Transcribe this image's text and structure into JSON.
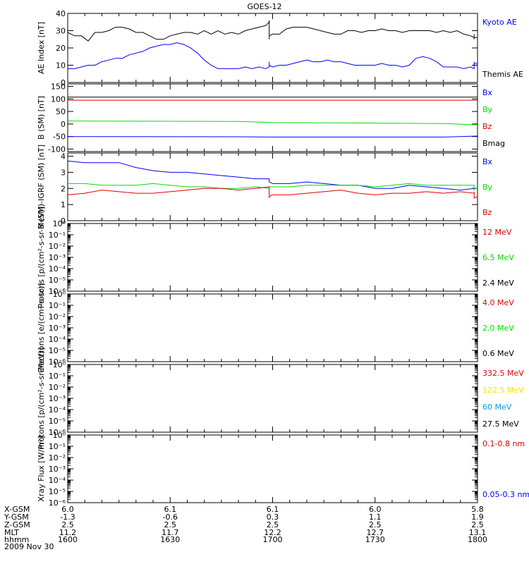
{
  "title": "GOES-12",
  "colors": {
    "black": "#000000",
    "blue": "#0000ff",
    "red": "#e00000",
    "green": "#00e000",
    "yellow": "#ffe000",
    "cyan": "#00a0e0",
    "orbit_blue": "#0000c8"
  },
  "chart_data": [
    {
      "type": "line",
      "id": "ae",
      "ylabel": "AE Index [nT]",
      "ylim": [
        0,
        40
      ],
      "yticks": [
        "0",
        "10",
        "20",
        "30",
        "40"
      ],
      "ytick_values": [
        0,
        10,
        20,
        30,
        40
      ],
      "series": [
        {
          "name": "Kyoto AE",
          "color": "blue",
          "x": [
            1600,
            1602,
            1604,
            1606,
            1608,
            1610,
            1612,
            1614,
            1616,
            1618,
            1620,
            1622,
            1624,
            1626,
            1628,
            1630,
            1632,
            1634,
            1636,
            1638,
            1640,
            1642,
            1644,
            1646,
            1648,
            1650,
            1652,
            1654,
            1656,
            1658,
            1660,
            1662,
            1664,
            1666,
            1668,
            1670,
            1672,
            1674,
            1676,
            1678,
            1680,
            1682,
            1684,
            1686,
            1688,
            1690,
            1692,
            1694,
            1696,
            1698,
            1700,
            1702,
            1704,
            1706,
            1708,
            1710,
            1712,
            1714,
            1716,
            1718,
            1720,
            1722,
            1724,
            1726,
            1728,
            1730,
            1732,
            1734,
            1736,
            1738,
            1740,
            1742,
            1744,
            1746,
            1748,
            1750,
            1752,
            1754,
            1756,
            1758,
            1760,
            1762,
            1764,
            1766,
            1768,
            1770,
            1772,
            1774,
            1776,
            1778,
            1780,
            1782,
            1784,
            1786,
            1788,
            1790,
            1792,
            1794,
            1796,
            1798,
            1800
          ],
          "values": [
            8,
            8,
            9,
            10,
            10,
            12,
            13,
            14,
            14,
            16,
            17,
            18,
            20,
            21,
            22,
            22,
            23,
            22,
            20,
            17,
            13,
            10,
            8,
            8,
            8,
            8,
            9,
            8,
            9,
            8,
            9,
            10,
            11,
            10,
            10,
            11,
            12,
            11,
            11,
            10,
            10,
            10,
            9,
            10,
            9,
            10,
            10,
            10,
            9,
            10,
            9,
            10,
            10,
            11,
            12,
            13,
            12,
            12,
            13,
            12,
            12,
            11,
            10,
            10,
            10,
            10,
            11,
            10,
            10,
            9,
            10,
            14,
            15,
            14,
            12,
            9,
            9,
            9,
            8,
            9,
            8,
            10,
            9,
            9,
            9,
            9,
            9,
            9,
            9,
            8,
            9,
            9,
            10,
            11,
            12,
            11,
            11,
            11,
            11,
            11,
            11
          ]
        },
        {
          "name": "Themis AE",
          "color": "black",
          "x": [
            1600,
            1602,
            1604,
            1606,
            1608,
            1610,
            1612,
            1614,
            1616,
            1618,
            1620,
            1622,
            1624,
            1626,
            1628,
            1630,
            1632,
            1634,
            1636,
            1638,
            1640,
            1642,
            1644,
            1646,
            1648,
            1650,
            1652,
            1654,
            1656,
            1658,
            1660,
            1662,
            1664,
            1666,
            1668,
            1670,
            1672,
            1674,
            1676,
            1678,
            1680,
            1682,
            1684,
            1686,
            1688,
            1690,
            1692,
            1694,
            1696,
            1698,
            1700,
            1702,
            1704,
            1706,
            1708,
            1710,
            1712,
            1714,
            1716,
            1718,
            1720,
            1722,
            1724,
            1726,
            1728,
            1730,
            1732,
            1734,
            1736,
            1738,
            1740,
            1742,
            1744,
            1746,
            1748,
            1750,
            1752,
            1754,
            1756,
            1758,
            1760,
            1762,
            1764,
            1766,
            1768,
            1770,
            1772,
            1774,
            1776,
            1778,
            1780,
            1782,
            1784,
            1786,
            1788,
            1790,
            1792,
            1794,
            1796,
            1798,
            1800
          ],
          "values": [
            29,
            27,
            27,
            24,
            29,
            29,
            30,
            32,
            32,
            31,
            29,
            29,
            27,
            25,
            25,
            27,
            28,
            29,
            29,
            28,
            30,
            28,
            30,
            28,
            29,
            28,
            30,
            31,
            32,
            33,
            35,
            36,
            35,
            35,
            35,
            32,
            30,
            27,
            26,
            26,
            25,
            25,
            26,
            25,
            25,
            26,
            26,
            26,
            27,
            27,
            28,
            28,
            31,
            32,
            32,
            32,
            31,
            30,
            29,
            28,
            28,
            30,
            30,
            29,
            30,
            30,
            31,
            30,
            30,
            29,
            30,
            30,
            30,
            30,
            29,
            30,
            29,
            30,
            28,
            27,
            26,
            26,
            25,
            26,
            26,
            26,
            26,
            26,
            27,
            26,
            26,
            26,
            27,
            27,
            28,
            28,
            27,
            26,
            26,
            26,
            26
          ]
        }
      ],
      "legend": [
        {
          "label": "Kyoto AE",
          "color": "blue"
        },
        {
          "label": "Themis AE",
          "color": "black"
        }
      ]
    },
    {
      "type": "line",
      "id": "bsm",
      "ylabel": "B (SM) [nT]",
      "ylim": [
        -110,
        160
      ],
      "yticks": [
        "-100",
        "-50",
        "0",
        "50",
        "100",
        "150"
      ],
      "ytick_values": [
        -100,
        -50,
        0,
        50,
        100,
        150
      ],
      "series": [
        {
          "name": "Bmag",
          "color": "black",
          "x": [
            1600,
            1800
          ],
          "values": [
            107,
            107
          ]
        },
        {
          "name": "Bz",
          "color": "red",
          "x": [
            1600,
            1800
          ],
          "values": [
            95,
            95
          ]
        },
        {
          "name": "By",
          "color": "green",
          "x": [
            1600,
            1650,
            1700,
            1750,
            1800
          ],
          "values": [
            12,
            10,
            6,
            2,
            -3
          ]
        },
        {
          "name": "Bx",
          "color": "blue",
          "x": [
            1600,
            1650,
            1700,
            1750,
            1800
          ],
          "values": [
            -50,
            -51,
            -52,
            -52,
            -48
          ]
        }
      ],
      "legend": [
        {
          "label": "Bx",
          "color": "blue"
        },
        {
          "label": "By",
          "color": "green"
        },
        {
          "label": "Bz",
          "color": "red"
        },
        {
          "label": "Bmag",
          "color": "black"
        }
      ]
    },
    {
      "type": "line",
      "id": "bigrf",
      "ylabel": "B (SM)-IGRF (SM) [nT]",
      "ylim": [
        0,
        4.2
      ],
      "yticks": [
        "0",
        "1",
        "2",
        "3",
        "4"
      ],
      "ytick_values": [
        0,
        1,
        2,
        3,
        4
      ],
      "series": [
        {
          "name": "Bx",
          "color": "blue",
          "x": [
            1600,
            1605,
            1610,
            1615,
            1620,
            1625,
            1630,
            1635,
            1640,
            1645,
            1650,
            1655,
            1660,
            1665,
            1670,
            1675,
            1680,
            1685,
            1690,
            1695,
            1700,
            1705,
            1710,
            1715,
            1720,
            1725,
            1730,
            1735,
            1740,
            1745,
            1750,
            1755,
            1760,
            1765,
            1770,
            1775,
            1780,
            1785,
            1790,
            1795,
            1800
          ],
          "values": [
            3.7,
            3.6,
            3.6,
            3.6,
            3.3,
            3.1,
            3.0,
            3.0,
            2.9,
            2.8,
            2.7,
            2.6,
            2.6,
            2.5,
            2.5,
            2.6,
            2.6,
            2.5,
            2.5,
            2.4,
            2.3,
            2.3,
            2.4,
            2.3,
            2.2,
            2.2,
            2.0,
            2.0,
            2.2,
            2.1,
            2.0,
            1.9,
            2.0,
            1.9,
            1.9,
            1.9,
            2.0,
            2.1,
            2.1,
            2.0,
            2.0
          ]
        },
        {
          "name": "By",
          "color": "green",
          "x": [
            1600,
            1605,
            1610,
            1615,
            1620,
            1625,
            1630,
            1635,
            1640,
            1645,
            1650,
            1655,
            1660,
            1665,
            1670,
            1675,
            1680,
            1685,
            1690,
            1695,
            1700,
            1705,
            1710,
            1715,
            1720,
            1725,
            1730,
            1735,
            1740,
            1745,
            1750,
            1755,
            1760,
            1765,
            1770,
            1775,
            1780,
            1785,
            1790,
            1795,
            1800
          ],
          "values": [
            2.3,
            2.3,
            2.2,
            2.2,
            2.2,
            2.3,
            2.2,
            2.1,
            2.1,
            2.0,
            2.0,
            2.1,
            2.0,
            2.0,
            2.1,
            2.1,
            2.1,
            2.0,
            2.0,
            2.1,
            2.1,
            2.1,
            2.2,
            2.2,
            2.2,
            2.2,
            2.1,
            2.2,
            2.3,
            2.2,
            2.2,
            2.2,
            2.2,
            2.2,
            2.1,
            2.2,
            2.1,
            2.1,
            2.1,
            2.0,
            2.0
          ]
        },
        {
          "name": "Bz",
          "color": "red",
          "x": [
            1600,
            1605,
            1610,
            1615,
            1620,
            1625,
            1630,
            1635,
            1640,
            1645,
            1650,
            1655,
            1660,
            1665,
            1670,
            1675,
            1680,
            1685,
            1690,
            1695,
            1700,
            1705,
            1710,
            1715,
            1720,
            1725,
            1730,
            1735,
            1740,
            1745,
            1750,
            1755,
            1760,
            1765,
            1770,
            1775,
            1780,
            1785,
            1790,
            1795,
            1800
          ],
          "values": [
            1.6,
            1.7,
            1.9,
            1.8,
            1.7,
            1.7,
            1.8,
            1.9,
            2.0,
            2.0,
            1.9,
            2.0,
            2.1,
            1.9,
            1.8,
            1.8,
            1.6,
            1.5,
            1.4,
            1.5,
            1.6,
            1.6,
            1.7,
            1.8,
            1.9,
            1.7,
            1.6,
            1.7,
            1.7,
            1.8,
            1.7,
            1.8,
            1.7,
            1.8,
            1.7,
            1.6,
            1.5,
            1.4,
            1.5,
            1.4,
            1.5
          ]
        }
      ],
      "legend": [
        {
          "label": "Bx",
          "color": "blue"
        },
        {
          "label": "By",
          "color": "green"
        },
        {
          "label": "Bz",
          "color": "red"
        }
      ]
    },
    {
      "type": "line",
      "id": "protons1",
      "log_scale": true,
      "ylabel": "Protons [p/(cm²-s-sr-MeV)]",
      "ylim_exp": [
        -6,
        0
      ],
      "yticks": [
        "10⁻⁶",
        "10⁻⁵",
        "10⁻⁴",
        "10⁻³",
        "10⁻²",
        "10⁻¹",
        "10⁰"
      ],
      "series": [],
      "legend": [
        {
          "label": "12 MeV",
          "color": "red"
        },
        {
          "label": "6.5 MeV",
          "color": "green"
        },
        {
          "label": "2.4 MeV",
          "color": "black"
        }
      ]
    },
    {
      "type": "line",
      "id": "electrons",
      "log_scale": true,
      "ylabel": "Electrons [e/(cm²-s-sr)]",
      "ylim_exp": [
        -6,
        0
      ],
      "yticks": [
        "10⁻⁶",
        "10⁻⁵",
        "10⁻⁴",
        "10⁻³",
        "10⁻²",
        "10⁻¹",
        "10⁰"
      ],
      "series": [],
      "legend": [
        {
          "label": "4.0 MeV",
          "color": "red"
        },
        {
          "label": "2.0 MeV",
          "color": "green"
        },
        {
          "label": "0.6 MeV",
          "color": "black"
        }
      ]
    },
    {
      "type": "line",
      "id": "protons2",
      "log_scale": true,
      "ylabel": "Protons [p/(cm²-s-sr-MeV)]",
      "ylim_exp": [
        -6,
        0
      ],
      "yticks": [
        "10⁻⁶",
        "10⁻⁵",
        "10⁻⁴",
        "10⁻³",
        "10⁻²",
        "10⁻¹",
        "10⁰"
      ],
      "series": [],
      "legend": [
        {
          "label": "332.5 MeV",
          "color": "red"
        },
        {
          "label": "122.5 MeV",
          "color": "yellow"
        },
        {
          "label": "60 MeV",
          "color": "cyan"
        },
        {
          "label": "27.5 MeV",
          "color": "black"
        }
      ]
    },
    {
      "type": "line",
      "id": "xray",
      "log_scale": true,
      "ylabel": "Xray Flux [W/m²]",
      "ylim_exp": [
        -6,
        0
      ],
      "yticks": [
        "10⁻⁶",
        "10⁻⁵",
        "10⁻⁴",
        "10⁻³",
        "10⁻²",
        "10⁻¹",
        "10⁰"
      ],
      "series": [],
      "legend": [
        {
          "label": "0.1-0.8 nm",
          "color": "red"
        },
        {
          "label": "0.05-0.3 nm",
          "color": "blue"
        }
      ]
    }
  ],
  "x_axis": {
    "xlim": [
      1600,
      1800
    ],
    "tick_values": [
      1600,
      1630,
      1700,
      1730,
      1800
    ],
    "row_labels": [
      "X-GSM",
      "Y-GSM",
      "Z-GSM",
      "MLT",
      "hhmm"
    ],
    "rows": [
      [
        "6.0",
        "6.1",
        "6.1",
        "6.0",
        "5.8"
      ],
      [
        "-1.3",
        "-0.6",
        "0.3",
        "1.1",
        "1.9"
      ],
      [
        "2.5",
        "2.5",
        "2.5",
        "2.5",
        "2.5"
      ],
      [
        "11.2",
        "11.7",
        "12.2",
        "12.7",
        "13.1"
      ],
      [
        "1600",
        "1630",
        "1700",
        "1730",
        "1800"
      ]
    ],
    "date": "2009 Nov 30"
  }
}
